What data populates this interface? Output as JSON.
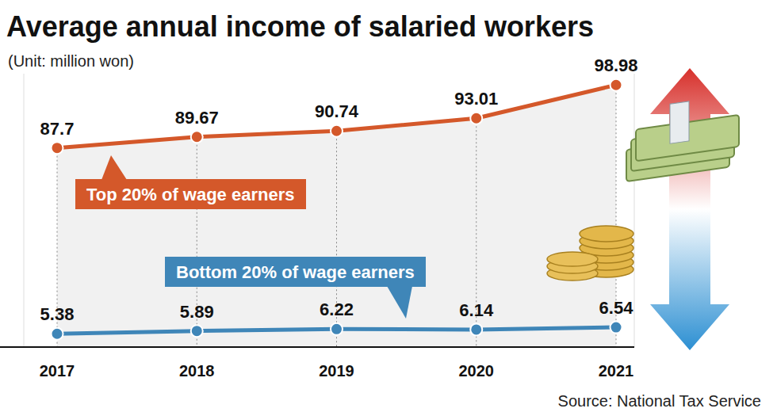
{
  "chart_data": {
    "type": "line",
    "title": "Average annual income of salaried workers",
    "subtitle": "(Unit: million won)",
    "annotations": [
      "Source: National Tax Service"
    ],
    "categories": [
      "2017",
      "2018",
      "2019",
      "2020",
      "2021"
    ],
    "series": [
      {
        "name": "Top 20% of wage earners",
        "color": "#d4582a",
        "values": [
          87.7,
          89.67,
          90.74,
          93.01,
          98.98
        ],
        "marker": "circle"
      },
      {
        "name": "Bottom 20% of wage earners",
        "color": "#3f86b8",
        "values": [
          5.38,
          5.89,
          6.22,
          6.14,
          6.54
        ],
        "marker": "circle",
        "axis": "y2"
      }
    ],
    "ylim": [
      52,
      101
    ],
    "yticks": [],
    "y2lim": [
      3,
      52
    ],
    "y2ticks": [],
    "grid": "x",
    "legend": "inline",
    "data_labels": true,
    "tick_labels": "x"
  }
}
